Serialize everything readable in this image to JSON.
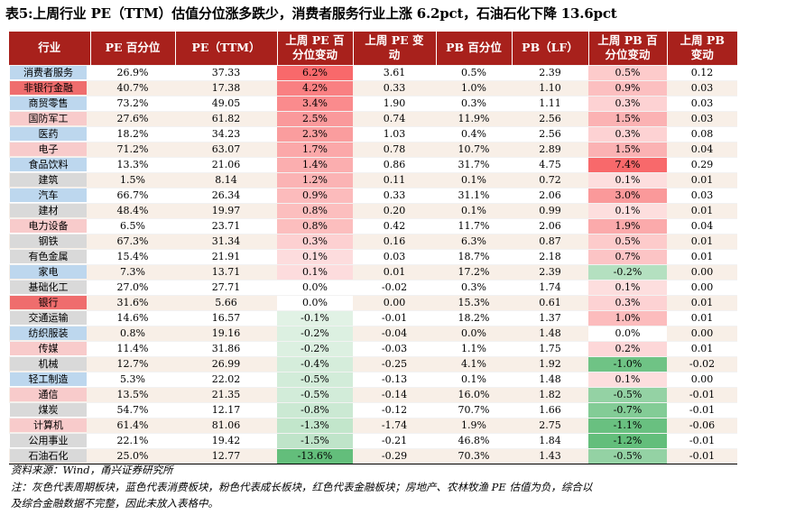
{
  "title": "表5:上周行业 PE（TTM）估值分位涨多跌少，消费者服务行业上涨 6.2pct，石油石化下降 13.6pct",
  "headers": [
    "行业",
    "PE 百分位",
    "PE（TTM）",
    "上周 PE 百分位变动",
    "上周 PE 变动",
    "PB 百分位",
    "PB（LF）",
    "上周 PB 百分位变动",
    "上周 PB 变动"
  ],
  "category_colors": {
    "cycle": "#d9d9d9",
    "consumer": "#bdd7ee",
    "growth": "#f8cbcb",
    "finance": "#ef6d6d"
  },
  "heat_colors": {
    "positive": "#f8696b",
    "negative": "#63be7b"
  },
  "rows": [
    {
      "industry": "消费者服务",
      "category": "consumer",
      "pe_pct": "26.9%",
      "pe_ttm": "37.33",
      "pe_pct_chg": "6.2%",
      "pe_chg": "3.61",
      "pb_pct": "0.5%",
      "pb_lf": "2.39",
      "pb_pct_chg": "0.5%",
      "pb_chg": "0.12"
    },
    {
      "industry": "非银行金融",
      "category": "finance",
      "pe_pct": "40.7%",
      "pe_ttm": "17.38",
      "pe_pct_chg": "4.2%",
      "pe_chg": "0.33",
      "pb_pct": "1.0%",
      "pb_lf": "1.10",
      "pb_pct_chg": "0.9%",
      "pb_chg": "0.03"
    },
    {
      "industry": "商贸零售",
      "category": "consumer",
      "pe_pct": "73.2%",
      "pe_ttm": "49.05",
      "pe_pct_chg": "3.4%",
      "pe_chg": "1.90",
      "pb_pct": "0.3%",
      "pb_lf": "1.11",
      "pb_pct_chg": "0.3%",
      "pb_chg": "0.03"
    },
    {
      "industry": "国防军工",
      "category": "growth",
      "pe_pct": "27.6%",
      "pe_ttm": "61.82",
      "pe_pct_chg": "2.5%",
      "pe_chg": "0.74",
      "pb_pct": "11.9%",
      "pb_lf": "2.56",
      "pb_pct_chg": "1.5%",
      "pb_chg": "0.03"
    },
    {
      "industry": "医药",
      "category": "consumer",
      "pe_pct": "18.2%",
      "pe_ttm": "34.23",
      "pe_pct_chg": "2.3%",
      "pe_chg": "1.03",
      "pb_pct": "0.4%",
      "pb_lf": "2.56",
      "pb_pct_chg": "0.3%",
      "pb_chg": "0.08"
    },
    {
      "industry": "电子",
      "category": "growth",
      "pe_pct": "71.2%",
      "pe_ttm": "63.07",
      "pe_pct_chg": "1.7%",
      "pe_chg": "0.78",
      "pb_pct": "10.7%",
      "pb_lf": "2.89",
      "pb_pct_chg": "1.5%",
      "pb_chg": "0.04"
    },
    {
      "industry": "食品饮料",
      "category": "consumer",
      "pe_pct": "13.3%",
      "pe_ttm": "21.06",
      "pe_pct_chg": "1.4%",
      "pe_chg": "0.86",
      "pb_pct": "31.7%",
      "pb_lf": "4.75",
      "pb_pct_chg": "7.4%",
      "pb_chg": "0.29"
    },
    {
      "industry": "建筑",
      "category": "cycle",
      "pe_pct": "1.5%",
      "pe_ttm": "8.14",
      "pe_pct_chg": "1.2%",
      "pe_chg": "0.11",
      "pb_pct": "0.1%",
      "pb_lf": "0.72",
      "pb_pct_chg": "0.1%",
      "pb_chg": "0.01"
    },
    {
      "industry": "汽车",
      "category": "consumer",
      "pe_pct": "66.7%",
      "pe_ttm": "26.34",
      "pe_pct_chg": "0.9%",
      "pe_chg": "0.33",
      "pb_pct": "31.1%",
      "pb_lf": "2.06",
      "pb_pct_chg": "3.0%",
      "pb_chg": "0.03"
    },
    {
      "industry": "建材",
      "category": "cycle",
      "pe_pct": "48.4%",
      "pe_ttm": "19.97",
      "pe_pct_chg": "0.8%",
      "pe_chg": "0.20",
      "pb_pct": "0.1%",
      "pb_lf": "0.99",
      "pb_pct_chg": "0.1%",
      "pb_chg": "0.01"
    },
    {
      "industry": "电力设备",
      "category": "growth",
      "pe_pct": "6.5%",
      "pe_ttm": "23.71",
      "pe_pct_chg": "0.8%",
      "pe_chg": "0.42",
      "pb_pct": "11.7%",
      "pb_lf": "2.06",
      "pb_pct_chg": "1.9%",
      "pb_chg": "0.04"
    },
    {
      "industry": "钢铁",
      "category": "cycle",
      "pe_pct": "67.3%",
      "pe_ttm": "31.34",
      "pe_pct_chg": "0.3%",
      "pe_chg": "0.16",
      "pb_pct": "6.3%",
      "pb_lf": "0.87",
      "pb_pct_chg": "0.5%",
      "pb_chg": "0.01"
    },
    {
      "industry": "有色金属",
      "category": "cycle",
      "pe_pct": "15.4%",
      "pe_ttm": "21.91",
      "pe_pct_chg": "0.1%",
      "pe_chg": "0.03",
      "pb_pct": "18.7%",
      "pb_lf": "2.18",
      "pb_pct_chg": "0.7%",
      "pb_chg": "0.01"
    },
    {
      "industry": "家电",
      "category": "consumer",
      "pe_pct": "7.3%",
      "pe_ttm": "13.71",
      "pe_pct_chg": "0.1%",
      "pe_chg": "0.01",
      "pb_pct": "17.2%",
      "pb_lf": "2.39",
      "pb_pct_chg": "-0.2%",
      "pb_chg": "0.00"
    },
    {
      "industry": "基础化工",
      "category": "cycle",
      "pe_pct": "27.0%",
      "pe_ttm": "27.71",
      "pe_pct_chg": "0.0%",
      "pe_chg": "-0.02",
      "pb_pct": "0.3%",
      "pb_lf": "1.74",
      "pb_pct_chg": "0.1%",
      "pb_chg": "0.00"
    },
    {
      "industry": "银行",
      "category": "finance",
      "pe_pct": "31.6%",
      "pe_ttm": "5.66",
      "pe_pct_chg": "0.0%",
      "pe_chg": "0.00",
      "pb_pct": "15.3%",
      "pb_lf": "0.61",
      "pb_pct_chg": "0.3%",
      "pb_chg": "0.01"
    },
    {
      "industry": "交通运输",
      "category": "cycle",
      "pe_pct": "14.6%",
      "pe_ttm": "16.57",
      "pe_pct_chg": "-0.1%",
      "pe_chg": "-0.01",
      "pb_pct": "18.2%",
      "pb_lf": "1.37",
      "pb_pct_chg": "1.0%",
      "pb_chg": "0.01"
    },
    {
      "industry": "纺织服装",
      "category": "consumer",
      "pe_pct": "0.8%",
      "pe_ttm": "19.16",
      "pe_pct_chg": "-0.2%",
      "pe_chg": "-0.04",
      "pb_pct": "0.0%",
      "pb_lf": "1.48",
      "pb_pct_chg": "0.0%",
      "pb_chg": "0.00"
    },
    {
      "industry": "传媒",
      "category": "growth",
      "pe_pct": "11.4%",
      "pe_ttm": "31.86",
      "pe_pct_chg": "-0.2%",
      "pe_chg": "-0.03",
      "pb_pct": "1.1%",
      "pb_lf": "1.75",
      "pb_pct_chg": "0.2%",
      "pb_chg": "0.01"
    },
    {
      "industry": "机械",
      "category": "cycle",
      "pe_pct": "12.7%",
      "pe_ttm": "26.99",
      "pe_pct_chg": "-0.4%",
      "pe_chg": "-0.25",
      "pb_pct": "4.1%",
      "pb_lf": "1.92",
      "pb_pct_chg": "-1.0%",
      "pb_chg": "-0.02"
    },
    {
      "industry": "轻工制造",
      "category": "consumer",
      "pe_pct": "5.3%",
      "pe_ttm": "22.02",
      "pe_pct_chg": "-0.5%",
      "pe_chg": "-0.13",
      "pb_pct": "0.1%",
      "pb_lf": "1.48",
      "pb_pct_chg": "0.1%",
      "pb_chg": "0.00"
    },
    {
      "industry": "通信",
      "category": "growth",
      "pe_pct": "13.5%",
      "pe_ttm": "21.35",
      "pe_pct_chg": "-0.5%",
      "pe_chg": "-0.14",
      "pb_pct": "16.0%",
      "pb_lf": "1.82",
      "pb_pct_chg": "-0.5%",
      "pb_chg": "-0.01"
    },
    {
      "industry": "煤炭",
      "category": "cycle",
      "pe_pct": "54.7%",
      "pe_ttm": "12.17",
      "pe_pct_chg": "-0.8%",
      "pe_chg": "-0.12",
      "pb_pct": "70.7%",
      "pb_lf": "1.66",
      "pb_pct_chg": "-0.7%",
      "pb_chg": "-0.01"
    },
    {
      "industry": "计算机",
      "category": "growth",
      "pe_pct": "61.4%",
      "pe_ttm": "81.06",
      "pe_pct_chg": "-1.3%",
      "pe_chg": "-1.74",
      "pb_pct": "1.9%",
      "pb_lf": "2.75",
      "pb_pct_chg": "-1.1%",
      "pb_chg": "-0.06"
    },
    {
      "industry": "公用事业",
      "category": "cycle",
      "pe_pct": "22.1%",
      "pe_ttm": "19.42",
      "pe_pct_chg": "-1.5%",
      "pe_chg": "-0.21",
      "pb_pct": "46.8%",
      "pb_lf": "1.84",
      "pb_pct_chg": "-1.2%",
      "pb_chg": "-0.01"
    },
    {
      "industry": "石油石化",
      "category": "cycle",
      "pe_pct": "25.0%",
      "pe_ttm": "12.77",
      "pe_pct_chg": "-13.6%",
      "pe_chg": "-0.29",
      "pb_pct": "70.3%",
      "pb_lf": "1.43",
      "pb_pct_chg": "-0.5%",
      "pb_chg": "-0.01"
    }
  ],
  "source": "资料来源：Wind，甬兴证券研究所",
  "note_line1": "注：灰色代表周期板块，蓝色代表消费板块，粉色代表成长板块，红色代表金融板块；房地产、农林牧渔 PE 估值为负，综合以",
  "note_line2": "及综合金融数据不完整，因此未放入表格中。"
}
